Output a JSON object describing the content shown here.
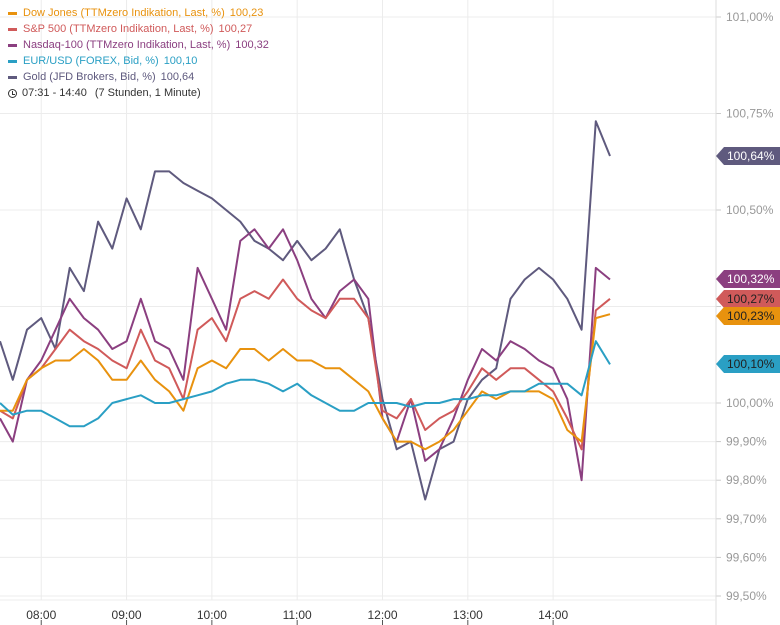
{
  "legend": {
    "series": [
      {
        "label": "Dow Jones (TTMzero Indikation, Last, %)",
        "last": "100,23",
        "color": "#e8920e"
      },
      {
        "label": "S&P 500 (TTMzero Indikation, Last, %)",
        "last": "100,27",
        "color": "#d05a5a"
      },
      {
        "label": "Nasdaq-100 (TTMzero Indikation, Last, %)",
        "last": "100,32",
        "color": "#8b3f80"
      },
      {
        "label": "EUR/USD (FOREX, Bid, %)",
        "last": "100,10",
        "color": "#2a9fc4"
      },
      {
        "label": "Gold (JFD Brokers, Bid, %)",
        "last": "100,64",
        "color": "#5f5a7e"
      }
    ],
    "time_range": "07:31 - 14:40",
    "duration": "(7 Stunden, 1 Minute)",
    "icon": "clock-icon"
  },
  "chart_data": {
    "type": "line",
    "title": "",
    "xlabel": "",
    "ylabel": "",
    "xlim": [
      "07:31",
      "14:40"
    ],
    "ylim": [
      99.48,
      101.05
    ],
    "grid": true,
    "legend_position": "top-left",
    "x_ticks": [
      "08:00",
      "09:00",
      "10:00",
      "11:00",
      "12:00",
      "13:00",
      "14:00"
    ],
    "y_ticks": [
      {
        "value": 101.0,
        "label": "101,00%"
      },
      {
        "value": 100.75,
        "label": "100,75%"
      },
      {
        "value": 100.5,
        "label": "100,50%"
      },
      {
        "value": 100.25,
        "label": ""
      },
      {
        "value": 100.0,
        "label": "100,00%"
      },
      {
        "value": 99.9,
        "label": "99,90%"
      },
      {
        "value": 99.8,
        "label": "99,80%"
      },
      {
        "value": 99.7,
        "label": "99,70%"
      },
      {
        "value": 99.6,
        "label": "99,60%"
      },
      {
        "value": 99.5,
        "label": "99,50%"
      }
    ],
    "x": [
      "07:31",
      "07:40",
      "07:50",
      "08:00",
      "08:10",
      "08:20",
      "08:30",
      "08:40",
      "08:50",
      "09:00",
      "09:10",
      "09:20",
      "09:30",
      "09:40",
      "09:50",
      "10:00",
      "10:10",
      "10:20",
      "10:30",
      "10:40",
      "10:50",
      "11:00",
      "11:10",
      "11:20",
      "11:30",
      "11:40",
      "11:50",
      "12:00",
      "12:10",
      "12:20",
      "12:30",
      "12:40",
      "12:50",
      "13:00",
      "13:10",
      "13:20",
      "13:30",
      "13:40",
      "13:50",
      "14:00",
      "14:10",
      "14:20",
      "14:30",
      "14:40"
    ],
    "series": [
      {
        "name": "Gold (JFD Brokers, Bid, %)",
        "color": "#5f5a7e",
        "end_label": "100,64%",
        "end_text_color": "#ffffff",
        "values": [
          100.16,
          100.06,
          100.19,
          100.22,
          100.14,
          100.35,
          100.29,
          100.47,
          100.4,
          100.53,
          100.45,
          100.6,
          100.6,
          100.57,
          100.55,
          100.53,
          100.5,
          100.47,
          100.42,
          100.4,
          100.37,
          100.42,
          100.37,
          100.4,
          100.45,
          100.32,
          100.22,
          100.01,
          99.88,
          99.9,
          99.75,
          99.88,
          99.9,
          100.01,
          100.06,
          100.09,
          100.27,
          100.32,
          100.35,
          100.32,
          100.27,
          100.19,
          100.73,
          100.64
        ]
      },
      {
        "name": "Nasdaq-100 (TTMzero Indikation, Last, %)",
        "color": "#8b3f80",
        "end_label": "100,32%",
        "end_text_color": "#ffffff",
        "values": [
          99.96,
          99.9,
          100.06,
          100.11,
          100.19,
          100.27,
          100.22,
          100.19,
          100.14,
          100.16,
          100.27,
          100.16,
          100.14,
          100.06,
          100.35,
          100.27,
          100.19,
          100.42,
          100.45,
          100.4,
          100.45,
          100.37,
          100.27,
          100.22,
          100.29,
          100.32,
          100.27,
          99.96,
          99.9,
          100.01,
          99.85,
          99.88,
          99.96,
          100.06,
          100.14,
          100.11,
          100.16,
          100.14,
          100.11,
          100.09,
          100.01,
          99.8,
          100.35,
          100.32
        ]
      },
      {
        "name": "S&P 500 (TTMzero Indikation, Last, %)",
        "color": "#d05a5a",
        "end_label": "100,27%",
        "end_text_color": "#222222",
        "values": [
          99.98,
          99.96,
          100.06,
          100.09,
          100.14,
          100.19,
          100.16,
          100.14,
          100.11,
          100.09,
          100.19,
          100.11,
          100.09,
          100.01,
          100.19,
          100.22,
          100.16,
          100.27,
          100.29,
          100.27,
          100.32,
          100.27,
          100.24,
          100.22,
          100.27,
          100.27,
          100.22,
          99.98,
          99.96,
          100.01,
          99.93,
          99.96,
          99.98,
          100.03,
          100.09,
          100.06,
          100.09,
          100.09,
          100.06,
          100.03,
          99.96,
          99.88,
          100.24,
          100.27
        ]
      },
      {
        "name": "Dow Jones (TTMzero Indikation, Last, %)",
        "color": "#e8920e",
        "end_label": "100,23%",
        "end_text_color": "#222222",
        "values": [
          99.98,
          99.98,
          100.06,
          100.09,
          100.11,
          100.11,
          100.14,
          100.11,
          100.06,
          100.06,
          100.11,
          100.06,
          100.03,
          99.98,
          100.09,
          100.11,
          100.09,
          100.14,
          100.14,
          100.11,
          100.14,
          100.11,
          100.11,
          100.09,
          100.09,
          100.06,
          100.03,
          99.96,
          99.9,
          99.9,
          99.88,
          99.9,
          99.93,
          99.98,
          100.03,
          100.01,
          100.03,
          100.03,
          100.03,
          100.01,
          99.93,
          99.9,
          100.22,
          100.23
        ]
      },
      {
        "name": "EUR/USD (FOREX, Bid, %)",
        "color": "#2a9fc4",
        "end_label": "100,10%",
        "end_text_color": "#222222",
        "values": [
          100.0,
          99.97,
          99.98,
          99.98,
          99.96,
          99.94,
          99.94,
          99.96,
          100.0,
          100.01,
          100.02,
          100.0,
          100.0,
          100.01,
          100.02,
          100.03,
          100.05,
          100.06,
          100.06,
          100.05,
          100.03,
          100.05,
          100.02,
          100.0,
          99.98,
          99.98,
          100.0,
          100.0,
          100.0,
          99.99,
          100.0,
          100.0,
          100.01,
          100.01,
          100.02,
          100.02,
          100.03,
          100.03,
          100.05,
          100.05,
          100.05,
          100.02,
          100.16,
          100.1
        ]
      }
    ]
  }
}
